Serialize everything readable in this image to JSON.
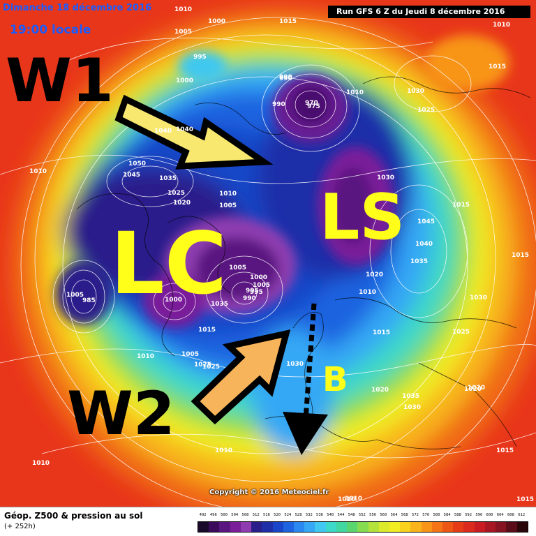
{
  "header": {
    "date": "Dimanche 18 décembre 2016",
    "time": "19:00 locale",
    "run": "Run GFS 6 Z du Jeudi 8 décembre 2016"
  },
  "annotations": {
    "w1": "W1",
    "w2": "W2",
    "lc": "LC",
    "ls": "LS",
    "b": "B"
  },
  "pressure_labels": [
    "1010",
    "1005",
    "1000",
    "1015",
    "1010",
    "995",
    "1000",
    "990",
    "1010",
    "1030",
    "1025",
    "1015",
    "1040",
    "1050",
    "1045",
    "1035",
    "1025",
    "1020",
    "1010",
    "1005",
    "1015",
    "1045",
    "1040",
    "1035",
    "1030",
    "1030",
    "1025",
    "1020",
    "1020",
    "1010",
    "1015",
    "1020",
    "1030",
    "1035",
    "1030",
    "1010",
    "1010",
    "1025",
    "1015",
    "1000",
    "1005",
    "995",
    "985",
    "990",
    "975",
    "970",
    "990",
    "1005",
    "1000",
    "1005",
    "995",
    "990",
    "1035",
    "1005",
    "1010",
    "1025",
    "1010",
    "1010",
    "1010",
    "1015",
    "1020",
    "1015",
    "1040",
    "1015"
  ],
  "footer": {
    "title": "Géop. Z500 & pression au sol",
    "lead": "(+ 252h)",
    "scale_values": [
      "492",
      "496",
      "500",
      "504",
      "508",
      "512",
      "516",
      "520",
      "524",
      "528",
      "532",
      "536",
      "540",
      "544",
      "548",
      "552",
      "556",
      "560",
      "564",
      "568",
      "572",
      "576",
      "580",
      "584",
      "588",
      "592",
      "596",
      "600",
      "604",
      "608",
      "612"
    ],
    "scale_colors": [
      "#1a0a2a",
      "#3c0a5a",
      "#5a1680",
      "#7a1e9a",
      "#8e3cb0",
      "#2a1f8a",
      "#1e2fa8",
      "#1946c8",
      "#1e64e0",
      "#2a88f0",
      "#36a8f5",
      "#40c8f0",
      "#3cd8c8",
      "#40d8a0",
      "#5ad670",
      "#86dc50",
      "#b4e23c",
      "#dcea2c",
      "#f2ec22",
      "#f8d21c",
      "#f8b41a",
      "#f89418",
      "#f47416",
      "#ee5614",
      "#e63c16",
      "#dc2a1e",
      "#c81c22",
      "#a81624",
      "#861222",
      "#5a0c18",
      "#2a060a"
    ],
    "copyright": "Copyright © 2016 Meteociel.fr"
  }
}
